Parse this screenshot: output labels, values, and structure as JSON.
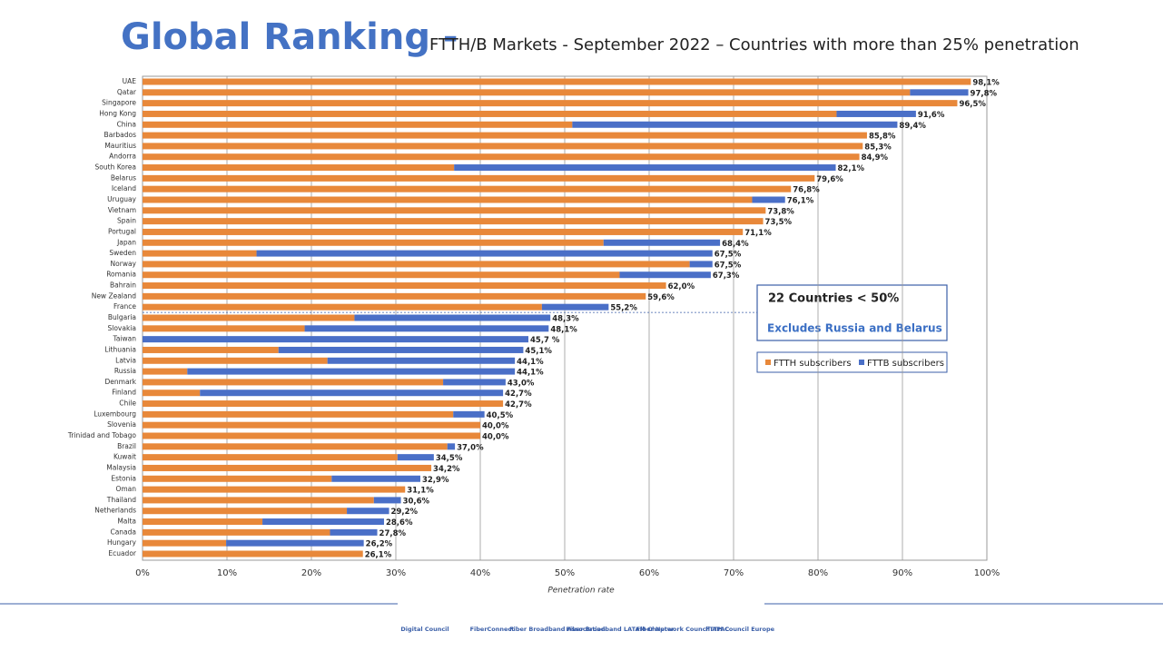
{
  "chart_data": {
    "type": "stacked-barh",
    "title": "Global Ranking -",
    "subtitle": "FTTH/B Markets - September 2022 – Countries with more than 25% penetration",
    "xlabel": "Penetration rate",
    "categories": [
      "UAE",
      "Qatar",
      "Singapore",
      "Hong Kong",
      "China",
      "Barbados",
      "Mauritius",
      "Andorra",
      "South Korea",
      "Belarus",
      "Iceland",
      "Uruguay",
      "Vietnam",
      "Spain",
      "Portugal",
      "Japan",
      "Sweden",
      "Norway",
      "Romania",
      "Bahrain",
      "New Zealand",
      "France",
      "Bulgaria",
      "Slovakia",
      "Taiwan",
      "Lithuania",
      "Latvia",
      "Russia",
      "Denmark",
      "Finland",
      "Chile",
      "Luxembourg",
      "Slovenia",
      "Trinidad and Tobago",
      "Brazil",
      "Kuwait",
      "Malaysia",
      "Estonia",
      "Oman",
      "Thailand",
      "Netherlands",
      "Malta",
      "Canada",
      "Hungary",
      "Ecuador"
    ],
    "series": [
      {
        "name": "FTTH subscribers",
        "color": "#e8883a",
        "values": [
          98.1,
          90.9,
          96.5,
          82.2,
          50.9,
          85.8,
          85.3,
          84.9,
          36.9,
          79.6,
          76.8,
          72.2,
          73.8,
          73.5,
          71.1,
          54.6,
          13.5,
          64.8,
          56.5,
          62.0,
          59.6,
          47.3,
          25.1,
          19.2,
          0,
          16.1,
          21.9,
          5.3,
          35.6,
          6.8,
          42.7,
          36.8,
          40.0,
          40.0,
          36.1,
          30.2,
          34.2,
          22.4,
          31.1,
          27.4,
          24.2,
          14.2,
          22.2,
          9.9,
          26.1
        ]
      },
      {
        "name": "FTTB subscribers",
        "color": "#4a6fc7",
        "values": [
          0,
          6.9,
          0,
          9.4,
          38.5,
          0,
          0,
          0,
          45.2,
          0,
          0,
          3.9,
          0,
          0,
          0,
          13.8,
          54.0,
          2.7,
          10.8,
          0,
          0,
          7.9,
          23.2,
          28.9,
          45.7,
          29.0,
          22.2,
          38.8,
          7.4,
          35.9,
          0,
          3.7,
          0,
          0,
          0.9,
          4.3,
          0,
          10.5,
          0,
          3.2,
          5.0,
          14.4,
          5.6,
          16.3,
          0
        ]
      }
    ],
    "totals": [
      98.1,
      97.8,
      96.5,
      91.6,
      89.4,
      85.8,
      85.3,
      84.9,
      82.1,
      79.6,
      76.8,
      76.1,
      73.8,
      73.5,
      71.1,
      68.4,
      67.5,
      67.5,
      67.3,
      62.0,
      59.6,
      55.2,
      48.3,
      48.1,
      45.7,
      45.1,
      44.1,
      44.1,
      43.0,
      42.7,
      42.7,
      40.5,
      40.0,
      40.0,
      37.0,
      34.5,
      34.2,
      32.9,
      31.1,
      30.6,
      29.2,
      28.6,
      27.8,
      26.2,
      26.1
    ],
    "total_labels": [
      "98,1%",
      "97,8%",
      "96,5%",
      "91,6%",
      "89,4%",
      "85,8%",
      "85,3%",
      "84,9%",
      "82,1%",
      "79,6%",
      "76,8%",
      "76,1%",
      "73,8%",
      "73,5%",
      "71,1%",
      "68,4%",
      "67,5%",
      "67,5%",
      "67,3%",
      "62,0%",
      "59,6%",
      "55,2%",
      "48,3%",
      "48,1%",
      "45,7 %",
      "45,1%",
      "44,1%",
      "44,1%",
      "43,0%",
      "42,7%",
      "42,7%",
      "40,5%",
      "40,0%",
      "40,0%",
      "37,0%",
      "34,5%",
      "34,2%",
      "32,9%",
      "31,1%",
      "30,6%",
      "29,2%",
      "28,6%",
      "27,8%",
      "26,2%",
      "26,1%"
    ],
    "xlim": [
      0,
      100
    ],
    "xticks": [
      {
        "value": 0,
        "label": "0%"
      },
      {
        "value": 10,
        "label": "10%"
      },
      {
        "value": 20,
        "label": "20%"
      },
      {
        "value": 30,
        "label": "30%"
      },
      {
        "value": 40,
        "label": "40%"
      },
      {
        "value": 50,
        "label": "50%"
      },
      {
        "value": 60,
        "label": "60%"
      },
      {
        "value": 70,
        "label": "70%"
      },
      {
        "value": 80,
        "label": "80%"
      },
      {
        "value": 90,
        "label": "90%"
      },
      {
        "value": 100,
        "label": "100%"
      }
    ],
    "grid": true,
    "annotations": [
      "22 Countries < 50%",
      "Excludes Russia and Belarus"
    ]
  },
  "footer": {
    "logos": [
      "Digital Council",
      "FiberConnect",
      "Fiber Broadband Association",
      "Fiber Broadband LATAM Chapter",
      "Fiber Network Council APAC",
      "FTTH Council Europe"
    ]
  }
}
